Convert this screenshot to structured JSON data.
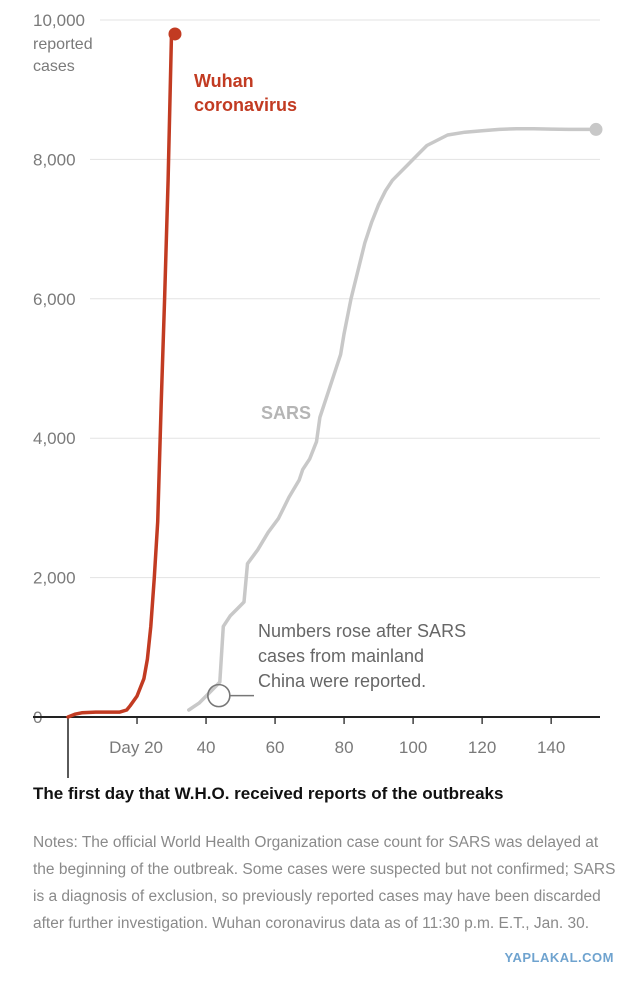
{
  "chart_data": {
    "type": "line",
    "ylabel_lines": [
      "reported",
      "cases"
    ],
    "xlim": [
      0,
      153
    ],
    "ylim": [
      0,
      10000
    ],
    "x_ticks": [
      {
        "value": 20,
        "label": "Day 20"
      },
      {
        "value": 40,
        "label": "40"
      },
      {
        "value": 60,
        "label": "60"
      },
      {
        "value": 80,
        "label": "80"
      },
      {
        "value": 100,
        "label": "100"
      },
      {
        "value": 120,
        "label": "120"
      },
      {
        "value": 140,
        "label": "140"
      }
    ],
    "y_ticks": [
      {
        "value": 0,
        "label": "0"
      },
      {
        "value": 2000,
        "label": "2,000"
      },
      {
        "value": 4000,
        "label": "4,000"
      },
      {
        "value": 6000,
        "label": "6,000"
      },
      {
        "value": 8000,
        "label": "8,000"
      },
      {
        "value": 10000,
        "label": "10,000"
      }
    ],
    "grid": true,
    "series": [
      {
        "name": "Wuhan coronavirus",
        "label_lines": [
          "Wuhan",
          "coronavirus"
        ],
        "color": "#c23b22",
        "end_marker": true,
        "points": [
          [
            0,
            0
          ],
          [
            2,
            40
          ],
          [
            4,
            60
          ],
          [
            8,
            70
          ],
          [
            12,
            70
          ],
          [
            15,
            70
          ],
          [
            17,
            100
          ],
          [
            18,
            160
          ],
          [
            20,
            300
          ],
          [
            22,
            550
          ],
          [
            23,
            830
          ],
          [
            24,
            1300
          ],
          [
            25,
            2000
          ],
          [
            26,
            2800
          ],
          [
            27,
            4500
          ],
          [
            28,
            6000
          ],
          [
            29,
            7700
          ],
          [
            30,
            9800
          ],
          [
            31,
            9800
          ]
        ]
      },
      {
        "name": "SARS",
        "label_lines": [
          "SARS"
        ],
        "color": "#c8c8c8",
        "end_marker": true,
        "points": [
          [
            35,
            100
          ],
          [
            38,
            200
          ],
          [
            41,
            350
          ],
          [
            43,
            450
          ],
          [
            44,
            500
          ],
          [
            45,
            1300
          ],
          [
            47,
            1450
          ],
          [
            49,
            1550
          ],
          [
            51,
            1650
          ],
          [
            52,
            2200
          ],
          [
            55,
            2400
          ],
          [
            58,
            2650
          ],
          [
            61,
            2850
          ],
          [
            64,
            3150
          ],
          [
            67,
            3400
          ],
          [
            68,
            3550
          ],
          [
            70,
            3700
          ],
          [
            72,
            3950
          ],
          [
            73,
            4300
          ],
          [
            75,
            4600
          ],
          [
            77,
            4900
          ],
          [
            79,
            5200
          ],
          [
            80,
            5500
          ],
          [
            82,
            6000
          ],
          [
            84,
            6400
          ],
          [
            86,
            6800
          ],
          [
            88,
            7100
          ],
          [
            90,
            7350
          ],
          [
            92,
            7550
          ],
          [
            94,
            7700
          ],
          [
            96,
            7800
          ],
          [
            98,
            7900
          ],
          [
            100,
            8000
          ],
          [
            102,
            8100
          ],
          [
            104,
            8200
          ],
          [
            106,
            8250
          ],
          [
            110,
            8350
          ],
          [
            115,
            8390
          ],
          [
            120,
            8410
          ],
          [
            125,
            8430
          ],
          [
            130,
            8440
          ],
          [
            135,
            8440
          ],
          [
            140,
            8435
          ],
          [
            145,
            8430
          ],
          [
            150,
            8430
          ],
          [
            153,
            8430
          ]
        ]
      }
    ],
    "annotation": {
      "lines": [
        "Numbers rose after SARS",
        "cases from mainland",
        "China were reported."
      ],
      "point": [
        44,
        450
      ]
    }
  },
  "first_day_label": "The first day that W.H.O. received reports of the outbreaks",
  "notes": "Notes: The official World Health Organization case count for SARS was delayed at the beginning of the outbreak. Some cases were suspected but not confirmed; SARS is a diagnosis of exclusion, so previously reported cases may have been discarded after further investigation. Wuhan coronavirus data as of 11:30 p.m. E.T., Jan. 30.",
  "watermark": "YAPLAKAL.COM"
}
